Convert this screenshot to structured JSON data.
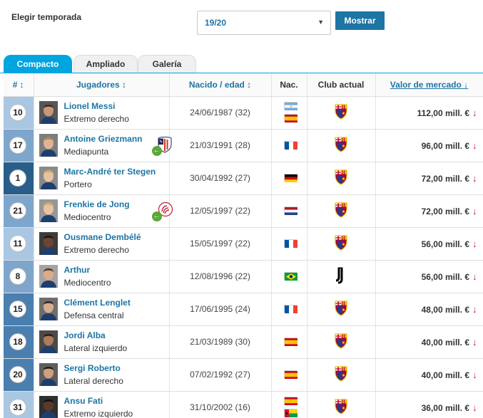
{
  "filter": {
    "season_label": "Elegir temporada",
    "season_value": "19/20",
    "show_button": "Mostrar"
  },
  "tabs": [
    {
      "label": "Compacto",
      "active": true
    },
    {
      "label": "Ampliado",
      "active": false
    },
    {
      "label": "Galería",
      "active": false
    }
  ],
  "table": {
    "headers": {
      "number": "# ↕",
      "players": "Jugadores ↕",
      "born": "Nacido / edad ↕",
      "nat": "Nac.",
      "club": "Club actual",
      "value": "Valor de mercado ↓"
    },
    "rows": [
      {
        "number": "10",
        "name": "Lionel Messi",
        "position": "Extremo derecho",
        "dob": "24/06/1987 (32)",
        "nationality": [
          "argentina",
          "spain"
        ],
        "club_icon": "barcelona-crest-icon",
        "value": "112,00 mill. €",
        "loan": false
      },
      {
        "number": "17",
        "name": "Antoine Griezmann",
        "position": "Mediapunta",
        "dob": "21/03/1991 (28)",
        "nationality": [
          "france"
        ],
        "club_icon": "barcelona-crest-icon",
        "value": "96,00 mill. €",
        "loan": true,
        "loan_club_icon": "atletico-crest-icon"
      },
      {
        "number": "1",
        "name": "Marc-André ter Stegen",
        "position": "Portero",
        "dob": "30/04/1992 (27)",
        "nationality": [
          "germany"
        ],
        "club_icon": "barcelona-crest-icon",
        "value": "72,00 mill. €",
        "loan": false
      },
      {
        "number": "21",
        "name": "Frenkie de Jong",
        "position": "Mediocentro",
        "dob": "12/05/1997 (22)",
        "nationality": [
          "netherlands"
        ],
        "club_icon": "barcelona-crest-icon",
        "value": "72,00 mill. €",
        "loan": true,
        "loan_club_icon": "ajax-crest-icon"
      },
      {
        "number": "11",
        "name": "Ousmane Dembélé",
        "position": "Extremo derecho",
        "dob": "15/05/1997 (22)",
        "nationality": [
          "france"
        ],
        "club_icon": "barcelona-crest-icon",
        "value": "56,00 mill. €",
        "loan": false
      },
      {
        "number": "8",
        "name": "Arthur",
        "position": "Mediocentro",
        "dob": "12/08/1996 (22)",
        "nationality": [
          "brazil"
        ],
        "club_icon": "juventus-crest-icon",
        "value": "56,00 mill. €",
        "loan": false
      },
      {
        "number": "15",
        "name": "Clément Lenglet",
        "position": "Defensa central",
        "dob": "17/06/1995 (24)",
        "nationality": [
          "france"
        ],
        "club_icon": "barcelona-crest-icon",
        "value": "48,00 mill. €",
        "loan": false
      },
      {
        "number": "18",
        "name": "Jordi Alba",
        "position": "Lateral izquierdo",
        "dob": "21/03/1989 (30)",
        "nationality": [
          "spain"
        ],
        "club_icon": "barcelona-crest-icon",
        "value": "40,00 mill. €",
        "loan": false
      },
      {
        "number": "20",
        "name": "Sergi Roberto",
        "position": "Lateral derecho",
        "dob": "07/02/1992 (27)",
        "nationality": [
          "spain"
        ],
        "club_icon": "barcelona-crest-icon",
        "value": "40,00 mill. €",
        "loan": false
      },
      {
        "number": "31",
        "name": "Ansu Fati",
        "position": "Extremo izquierdo",
        "dob": "31/10/2002 (16)",
        "nationality": [
          "spain",
          "guinea-bissau"
        ],
        "club_icon": "barcelona-crest-icon",
        "value": "36,00 mill. €",
        "loan": false
      }
    ]
  },
  "colors": {
    "link": "#1d75a3",
    "tab_active": "#00a5e0",
    "goalkeeper_cell": "#2a5e8a",
    "defender_cell": "#4a7fb0",
    "midfielder_cell": "#7ea6cc",
    "attacker_cell": "#a9c7e2",
    "value_down": "#c0192a"
  }
}
